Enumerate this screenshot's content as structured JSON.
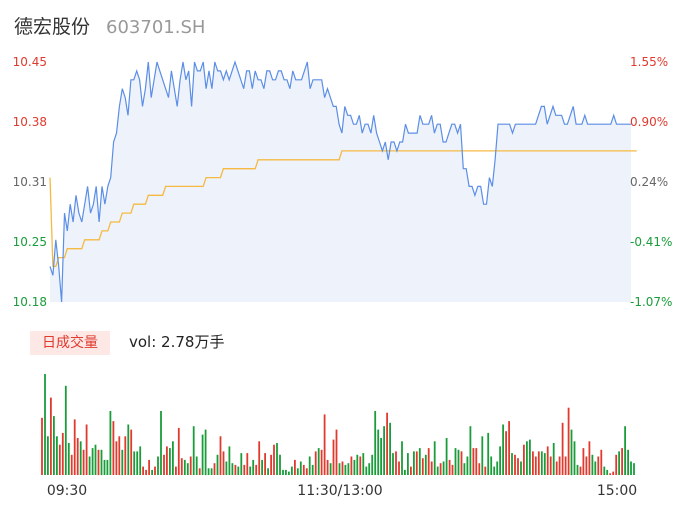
{
  "header": {
    "name": "德宏股份",
    "code": "603701.SH"
  },
  "colors": {
    "up": "#e03a2e",
    "down": "#1a9c3a",
    "neutral": "#666666",
    "price_line": "#5b8ee6",
    "avg_line": "#f5b942",
    "area_fill": "#eef3fb",
    "last_bar": "#f2aaaa"
  },
  "volume_panel": {
    "badge": "日成交量",
    "vol_label": "vol: 2.78万手"
  },
  "chart_data": [
    {
      "type": "line",
      "name": "intraday-price",
      "y_left_ticks": [
        "10.45",
        "10.38",
        "10.31",
        "10.25",
        "10.18"
      ],
      "y_right_ticks": [
        "1.55%",
        "0.90%",
        "0.24%",
        "-0.41%",
        "-1.07%"
      ],
      "ylim": [
        10.18,
        10.45
      ],
      "prev_close": 10.29,
      "x_ticks": [
        "09:30",
        "11:30/13:00",
        "15:00"
      ],
      "series": [
        {
          "role": "price",
          "values": [
            10.22,
            10.21,
            10.25,
            10.22,
            10.18,
            10.28,
            10.26,
            10.29,
            10.27,
            10.3,
            10.28,
            10.27,
            10.29,
            10.31,
            10.28,
            10.29,
            10.31,
            10.27,
            10.31,
            10.29,
            10.31,
            10.32,
            10.36,
            10.37,
            10.4,
            10.42,
            10.41,
            10.39,
            10.43,
            10.43,
            10.44,
            10.43,
            10.4,
            10.42,
            10.45,
            10.41,
            10.43,
            10.45,
            10.44,
            10.43,
            10.42,
            10.41,
            10.44,
            10.42,
            10.4,
            10.43,
            10.45,
            10.43,
            10.44,
            10.4,
            10.45,
            10.44,
            10.44,
            10.45,
            10.42,
            10.44,
            10.42,
            10.45,
            10.44,
            10.44,
            10.43,
            10.44,
            10.43,
            10.44,
            10.45,
            10.44,
            10.43,
            10.42,
            10.44,
            10.44,
            10.42,
            10.44,
            10.43,
            10.43,
            10.42,
            10.44,
            10.44,
            10.43,
            10.43,
            10.44,
            10.44,
            10.43,
            10.43,
            10.42,
            10.44,
            10.43,
            10.43,
            10.43,
            10.44,
            10.45,
            10.42,
            10.43,
            10.43,
            10.43,
            10.43,
            10.41,
            10.42,
            10.41,
            10.4,
            10.4,
            10.38,
            10.37,
            10.4,
            10.39,
            10.39,
            10.38,
            10.38,
            10.39,
            10.37,
            10.38,
            10.38,
            10.37,
            10.39,
            10.37,
            10.36,
            10.35,
            10.36,
            10.34,
            10.36,
            10.36,
            10.35,
            10.36,
            10.36,
            10.38,
            10.37,
            10.37,
            10.37,
            10.37,
            10.39,
            10.38,
            10.38,
            10.38,
            10.39,
            10.37,
            10.38,
            10.38,
            10.36,
            10.36,
            10.37,
            10.38,
            10.38,
            10.37,
            10.38,
            10.33,
            10.33,
            10.31,
            10.31,
            10.3,
            10.31,
            10.31,
            10.29,
            10.29,
            10.32,
            10.31,
            10.34,
            10.38,
            10.38,
            10.38,
            10.38,
            10.38,
            10.37,
            10.38,
            10.38,
            10.38,
            10.38,
            10.38,
            10.38,
            10.38,
            10.38,
            10.39,
            10.4,
            10.4,
            10.38,
            10.39,
            10.4,
            10.39,
            10.39,
            10.39,
            10.38,
            10.38,
            10.39,
            10.4,
            10.38,
            10.38,
            10.38,
            10.39,
            10.38,
            10.38,
            10.38,
            10.38,
            10.38,
            10.38,
            10.38,
            10.38,
            10.38,
            10.39,
            10.38,
            10.38,
            10.38,
            10.38,
            10.38,
            10.38
          ]
        },
        {
          "role": "average",
          "values": [
            10.32,
            10.22,
            10.22,
            10.23,
            10.23,
            10.23,
            10.24,
            10.24,
            10.24,
            10.24,
            10.24,
            10.24,
            10.25,
            10.25,
            10.25,
            10.25,
            10.25,
            10.25,
            10.26,
            10.26,
            10.26,
            10.27,
            10.27,
            10.27,
            10.27,
            10.28,
            10.28,
            10.28,
            10.28,
            10.29,
            10.29,
            10.29,
            10.29,
            10.29,
            10.3,
            10.3,
            10.3,
            10.3,
            10.3,
            10.3,
            10.31,
            10.31,
            10.31,
            10.31,
            10.31,
            10.31,
            10.31,
            10.31,
            10.31,
            10.31,
            10.31,
            10.31,
            10.31,
            10.31,
            10.32,
            10.32,
            10.32,
            10.32,
            10.32,
            10.32,
            10.33,
            10.33,
            10.33,
            10.33,
            10.33,
            10.33,
            10.33,
            10.33,
            10.33,
            10.33,
            10.33,
            10.33,
            10.34,
            10.34,
            10.34,
            10.34,
            10.34,
            10.34,
            10.34,
            10.34,
            10.34,
            10.34,
            10.34,
            10.34,
            10.34,
            10.34,
            10.34,
            10.34,
            10.34,
            10.34,
            10.34,
            10.34,
            10.34,
            10.34,
            10.34,
            10.34,
            10.34,
            10.34,
            10.34,
            10.34,
            10.34,
            10.35,
            10.35,
            10.35,
            10.35,
            10.35,
            10.35,
            10.35,
            10.35,
            10.35,
            10.35,
            10.35,
            10.35,
            10.35,
            10.35,
            10.35,
            10.35,
            10.35,
            10.35,
            10.35,
            10.35,
            10.35,
            10.35,
            10.35,
            10.35,
            10.35,
            10.35,
            10.35,
            10.35,
            10.35,
            10.35,
            10.35,
            10.35,
            10.35,
            10.35,
            10.35,
            10.35,
            10.35,
            10.35,
            10.35,
            10.35,
            10.35,
            10.35,
            10.35,
            10.35,
            10.35,
            10.35,
            10.35,
            10.35,
            10.35,
            10.35,
            10.35,
            10.35,
            10.35,
            10.35,
            10.35,
            10.35,
            10.35,
            10.35,
            10.35,
            10.35,
            10.35,
            10.35,
            10.35,
            10.35,
            10.35,
            10.35,
            10.35,
            10.35,
            10.35,
            10.35,
            10.35,
            10.35,
            10.35,
            10.35,
            10.35,
            10.35,
            10.35,
            10.35,
            10.35,
            10.35,
            10.35,
            10.35,
            10.35,
            10.35,
            10.35,
            10.35,
            10.35,
            10.35,
            10.35,
            10.35,
            10.35,
            10.35,
            10.35,
            10.35,
            10.35,
            10.35,
            10.35,
            10.35,
            10.35,
            10.35,
            10.35,
            10.35,
            10.35
          ]
        }
      ]
    },
    {
      "type": "bar",
      "name": "intraday-volume",
      "note_directions": "u = up (red), d = down (green), e = last bar",
      "values": [
        34,
        60,
        23,
        46,
        35,
        23,
        18,
        25,
        53,
        19,
        12,
        33,
        22,
        20,
        15,
        30,
        11,
        16,
        18,
        15,
        15,
        9,
        9,
        38,
        32,
        20,
        23,
        15,
        23,
        30,
        27,
        14,
        14,
        17,
        5,
        3,
        9,
        3,
        5,
        11,
        38,
        12,
        17,
        16,
        20,
        5,
        28,
        10,
        9,
        7,
        11,
        29,
        11,
        4,
        24,
        27,
        4,
        4,
        7,
        12,
        23,
        14,
        8,
        17,
        7,
        6,
        5,
        13,
        6,
        13,
        5,
        9,
        6,
        20,
        9,
        13,
        4,
        12,
        18,
        19,
        12,
        3,
        3,
        2,
        5,
        9,
        4,
        8,
        6,
        4,
        11,
        6,
        14,
        16,
        15,
        36,
        9,
        7,
        21,
        27,
        7,
        8,
        6,
        7,
        11,
        9,
        12,
        11,
        13,
        5,
        7,
        12,
        38,
        27,
        22,
        29,
        37,
        31,
        13,
        14,
        8,
        20,
        3,
        13,
        5,
        14,
        14,
        16,
        10,
        12,
        16,
        8,
        20,
        5,
        7,
        8,
        22,
        9,
        6,
        16,
        15,
        14,
        7,
        11,
        29,
        16,
        16,
        7,
        23,
        5,
        25,
        11,
        5,
        8,
        17,
        30,
        26,
        32,
        13,
        12,
        10,
        8,
        18,
        20,
        21,
        14,
        11,
        14,
        14,
        13,
        17,
        11,
        19,
        8,
        11,
        31,
        11,
        40,
        27,
        20,
        6,
        5,
        16,
        11,
        20,
        12,
        8,
        11,
        15,
        5,
        3,
        1,
        2,
        12,
        14,
        16,
        29,
        15,
        8,
        7
      ],
      "directions": "uddudduudduuuduudddudddduuudududdduuududduudduuudduddudddduduudddudduudduududuuddddddudduudduduuuduududdudduddddddddudduudddudududuuddudduudduddduuududddddduuduududduuudduuduuuuuddduuuudduudduuududddduuuuuuuuuuuue"
    }
  ]
}
